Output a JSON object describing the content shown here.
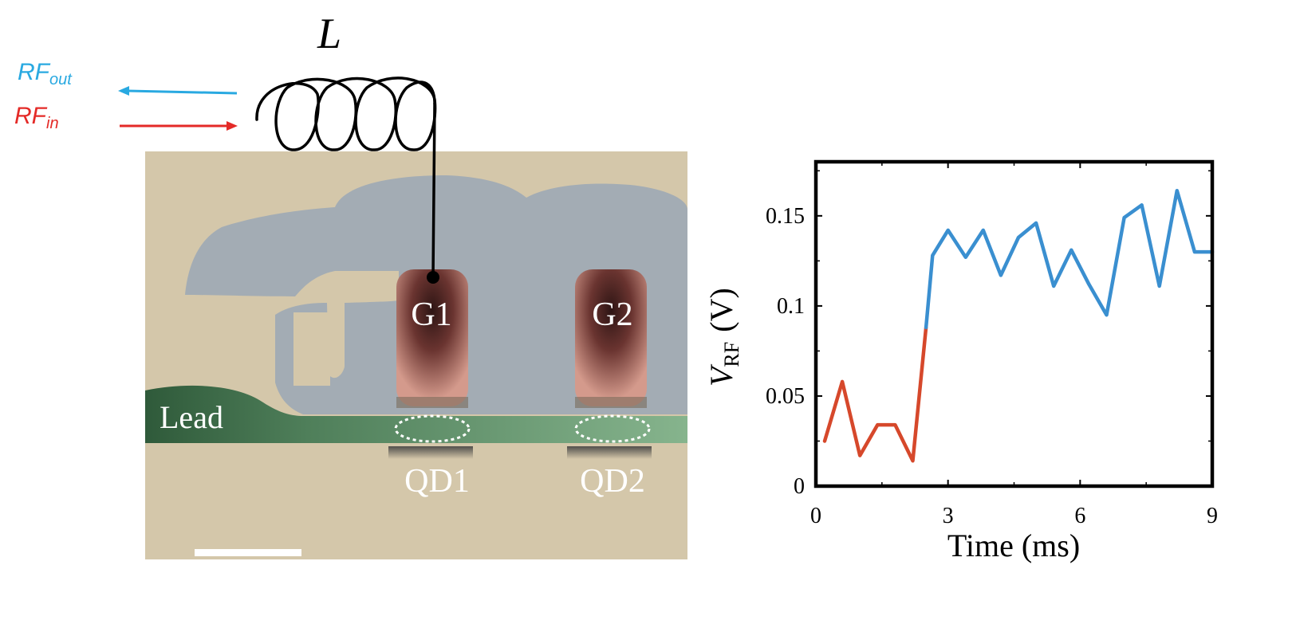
{
  "circuit": {
    "inductor_label": "L",
    "rf_out": {
      "main": "RF",
      "sub": "out",
      "color": "#29a9e1"
    },
    "rf_in": {
      "main": "RF",
      "sub": "in",
      "color": "#e42a27"
    }
  },
  "micrograph": {
    "gate1_label": "G1",
    "gate2_label": "G2",
    "lead_label": "Lead",
    "dot1_label": "QD1",
    "dot2_label": "QD2",
    "colors": {
      "substrate": "#d4c7aa",
      "gate_layer": "#a3acb4",
      "gate": "#d49a8c",
      "gate_dark": "#4a2624",
      "lead": "#7fae86",
      "lead_dark": "#3f6b4a"
    }
  },
  "chart_data": {
    "type": "line",
    "title": "",
    "xlabel": "Time (ms)",
    "ylabel_main": "V",
    "ylabel_sub": "RF",
    "ylabel_unit": "(V)",
    "xlim": [
      0,
      9
    ],
    "ylim": [
      0,
      0.18
    ],
    "xticks": [
      0,
      3,
      6,
      9
    ],
    "xtick_labels": [
      "0",
      "3",
      "6",
      "9"
    ],
    "yticks": [
      0,
      0.05,
      0.1,
      0.15
    ],
    "ytick_labels": [
      "0",
      "0.05",
      "0.1",
      "0.15"
    ],
    "series": [
      {
        "color": "#d6482b",
        "x": [
          0.2,
          0.6,
          1.0,
          1.4,
          1.8,
          2.2,
          2.5
        ],
        "y": [
          0.025,
          0.058,
          0.017,
          0.034,
          0.034,
          0.014,
          0.088
        ]
      },
      {
        "color": "#3a8fd0",
        "x": [
          2.5,
          2.65,
          3.0,
          3.4,
          3.8,
          4.2,
          4.6,
          5.0,
          5.4,
          5.8,
          6.2,
          6.6,
          7.0,
          7.4,
          7.8,
          8.2,
          8.6,
          9.0
        ],
        "y": [
          0.088,
          0.128,
          0.142,
          0.127,
          0.142,
          0.117,
          0.138,
          0.146,
          0.111,
          0.131,
          0.112,
          0.095,
          0.149,
          0.156,
          0.111,
          0.164,
          0.13,
          0.13
        ]
      }
    ]
  }
}
